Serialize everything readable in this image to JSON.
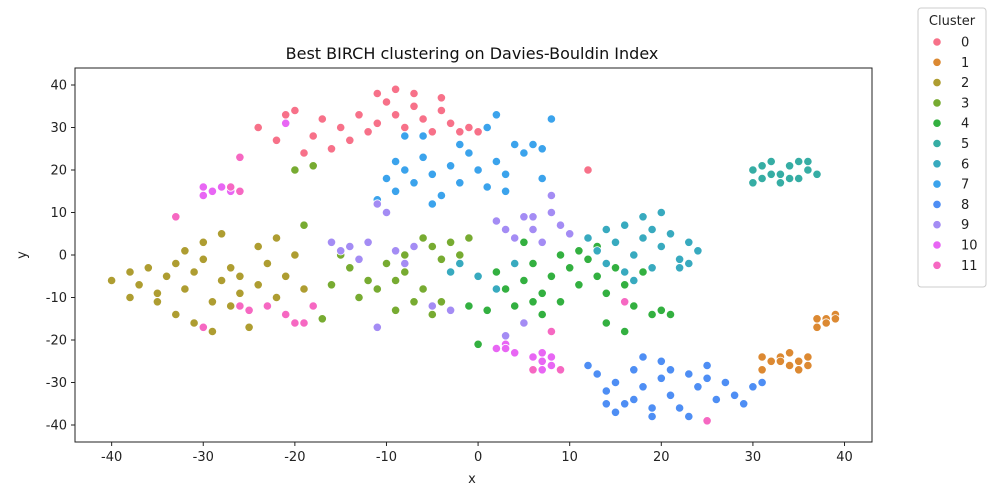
{
  "chart_data": {
    "type": "scatter",
    "title": "Best BIRCH clustering on Davies-Bouldin Index",
    "xlabel": "x",
    "ylabel": "y",
    "xlim": [
      -44,
      43
    ],
    "ylim": [
      -44,
      44
    ],
    "xticks": [
      -40,
      -30,
      -20,
      -10,
      0,
      10,
      20,
      30,
      40
    ],
    "yticks": [
      -40,
      -30,
      -20,
      -10,
      0,
      10,
      20,
      30,
      40
    ],
    "grid": false,
    "legend": {
      "title": "Cluster",
      "placement": "outside-top-right"
    },
    "series": [
      {
        "name": "0",
        "color": "#f77189",
        "points": [
          [
            -20,
            34
          ],
          [
            -17,
            32
          ],
          [
            -15,
            30
          ],
          [
            -13,
            33
          ],
          [
            -12,
            29
          ],
          [
            -11,
            31
          ],
          [
            -10,
            36
          ],
          [
            -9,
            33
          ],
          [
            -8,
            30
          ],
          [
            -7,
            35
          ],
          [
            -6,
            32
          ],
          [
            -5,
            29
          ],
          [
            -4,
            34
          ],
          [
            -14,
            27
          ],
          [
            -16,
            25
          ],
          [
            -18,
            28
          ],
          [
            -11,
            38
          ],
          [
            -9,
            39
          ],
          [
            -7,
            38
          ],
          [
            -3,
            31
          ],
          [
            -2,
            29
          ],
          [
            -1,
            30
          ],
          [
            0,
            29
          ],
          [
            -19,
            24
          ],
          [
            -21,
            33
          ],
          [
            -22,
            27
          ],
          [
            -24,
            30
          ],
          [
            -26,
            23
          ],
          [
            12,
            20
          ],
          [
            -4,
            37
          ]
        ]
      },
      {
        "name": "1",
        "color": "#dc8932",
        "points": [
          [
            31,
            -24
          ],
          [
            32,
            -25
          ],
          [
            33,
            -24
          ],
          [
            34,
            -23
          ],
          [
            35,
            -25
          ],
          [
            36,
            -26
          ],
          [
            34,
            -26
          ],
          [
            33,
            -25
          ],
          [
            36,
            -24
          ],
          [
            31,
            -27
          ],
          [
            37,
            -17
          ],
          [
            38,
            -15
          ],
          [
            39,
            -14
          ],
          [
            38,
            -16
          ],
          [
            37,
            -15
          ],
          [
            39,
            -15
          ],
          [
            35,
            -27
          ]
        ]
      },
      {
        "name": "2",
        "color": "#ae9d31",
        "points": [
          [
            -40,
            -6
          ],
          [
            -38,
            -4
          ],
          [
            -37,
            -7
          ],
          [
            -36,
            -3
          ],
          [
            -35,
            -9
          ],
          [
            -34,
            -5
          ],
          [
            -33,
            -2
          ],
          [
            -32,
            -8
          ],
          [
            -31,
            -4
          ],
          [
            -30,
            -1
          ],
          [
            -29,
            -11
          ],
          [
            -28,
            -6
          ],
          [
            -27,
            -3
          ],
          [
            -26,
            -9
          ],
          [
            -25,
            -13
          ],
          [
            -24,
            -7
          ],
          [
            -23,
            -2
          ],
          [
            -22,
            -10
          ],
          [
            -21,
            -5
          ],
          [
            -20,
            0
          ],
          [
            -19,
            -8
          ],
          [
            -22,
            4
          ],
          [
            -24,
            2
          ],
          [
            -30,
            3
          ],
          [
            -28,
            5
          ],
          [
            -33,
            -14
          ],
          [
            -29,
            -18
          ],
          [
            -25,
            -17
          ],
          [
            -31,
            -16
          ],
          [
            -35,
            -11
          ],
          [
            -38,
            -10
          ],
          [
            -26,
            -5
          ],
          [
            -32,
            1
          ],
          [
            -27,
            -12
          ]
        ]
      },
      {
        "name": "3",
        "color": "#77ab31",
        "points": [
          [
            -20,
            20
          ],
          [
            -18,
            21
          ],
          [
            -17,
            -15
          ],
          [
            -16,
            -7
          ],
          [
            -14,
            -3
          ],
          [
            -13,
            -10
          ],
          [
            -12,
            -6
          ],
          [
            -11,
            -8
          ],
          [
            -9,
            -13
          ],
          [
            -8,
            -4
          ],
          [
            -7,
            -11
          ],
          [
            -6,
            -8
          ],
          [
            -5,
            -14
          ],
          [
            -5,
            2
          ],
          [
            -4,
            -1
          ],
          [
            -3,
            3
          ],
          [
            -2,
            0
          ],
          [
            -1,
            4
          ],
          [
            -8,
            0
          ],
          [
            -10,
            -2
          ],
          [
            -6,
            4
          ],
          [
            -4,
            -11
          ],
          [
            -9,
            -6
          ],
          [
            -19,
            7
          ],
          [
            -15,
            0
          ]
        ]
      },
      {
        "name": "4",
        "color": "#33b040",
        "points": [
          [
            2,
            -4
          ],
          [
            3,
            -8
          ],
          [
            4,
            -12
          ],
          [
            5,
            -6
          ],
          [
            6,
            -2
          ],
          [
            7,
            -9
          ],
          [
            8,
            -5
          ],
          [
            9,
            -11
          ],
          [
            10,
            -3
          ],
          [
            11,
            -7
          ],
          [
            12,
            -1
          ],
          [
            13,
            -5
          ],
          [
            14,
            -9
          ],
          [
            15,
            -3
          ],
          [
            16,
            -7
          ],
          [
            17,
            -12
          ],
          [
            18,
            -4
          ],
          [
            19,
            -14
          ],
          [
            20,
            -13
          ],
          [
            21,
            -14
          ],
          [
            11,
            1
          ],
          [
            13,
            2
          ],
          [
            9,
            0
          ],
          [
            7,
            -14
          ],
          [
            6,
            -11
          ],
          [
            16,
            -18
          ],
          [
            14,
            -16
          ],
          [
            1,
            -13
          ],
          [
            -1,
            -12
          ],
          [
            0,
            -21
          ],
          [
            8,
            -18
          ],
          [
            5,
            3
          ]
        ]
      },
      {
        "name": "5",
        "color": "#36ada4",
        "points": [
          [
            30,
            20
          ],
          [
            31,
            18
          ],
          [
            32,
            22
          ],
          [
            33,
            19
          ],
          [
            34,
            21
          ],
          [
            35,
            18
          ],
          [
            36,
            20
          ],
          [
            37,
            19
          ],
          [
            33,
            17
          ],
          [
            35,
            22
          ],
          [
            32,
            19
          ],
          [
            34,
            18
          ],
          [
            36,
            22
          ],
          [
            31,
            21
          ],
          [
            30,
            17
          ]
        ]
      },
      {
        "name": "6",
        "color": "#38aabf",
        "points": [
          [
            12,
            4
          ],
          [
            13,
            1
          ],
          [
            14,
            -2
          ],
          [
            15,
            3
          ],
          [
            16,
            7
          ],
          [
            17,
            0
          ],
          [
            18,
            4
          ],
          [
            19,
            -3
          ],
          [
            20,
            2
          ],
          [
            21,
            5
          ],
          [
            22,
            -1
          ],
          [
            23,
            3
          ],
          [
            24,
            1
          ],
          [
            18,
            9
          ],
          [
            20,
            10
          ],
          [
            16,
            -4
          ],
          [
            19,
            6
          ],
          [
            22,
            -3
          ],
          [
            14,
            6
          ],
          [
            17,
            -6
          ],
          [
            23,
            -2
          ],
          [
            -3,
            -4
          ],
          [
            -2,
            -2
          ],
          [
            0,
            -5
          ],
          [
            2,
            -8
          ],
          [
            4,
            -2
          ]
        ]
      },
      {
        "name": "7",
        "color": "#3ba3ec",
        "points": [
          [
            -10,
            18
          ],
          [
            -9,
            15
          ],
          [
            -8,
            20
          ],
          [
            -7,
            17
          ],
          [
            -6,
            23
          ],
          [
            -5,
            19
          ],
          [
            -4,
            14
          ],
          [
            -3,
            21
          ],
          [
            -2,
            17
          ],
          [
            -1,
            24
          ],
          [
            0,
            20
          ],
          [
            1,
            16
          ],
          [
            2,
            22
          ],
          [
            3,
            19
          ],
          [
            4,
            26
          ],
          [
            5,
            24
          ],
          [
            6,
            26
          ],
          [
            7,
            25
          ],
          [
            8,
            32
          ],
          [
            -8,
            28
          ],
          [
            -6,
            28
          ],
          [
            -11,
            13
          ],
          [
            -2,
            26
          ],
          [
            1,
            30
          ],
          [
            2,
            33
          ],
          [
            -9,
            22
          ],
          [
            -5,
            12
          ],
          [
            3,
            15
          ],
          [
            7,
            18
          ]
        ]
      },
      {
        "name": "8",
        "color": "#4e8ef4",
        "points": [
          [
            12,
            -26
          ],
          [
            13,
            -28
          ],
          [
            14,
            -32
          ],
          [
            15,
            -30
          ],
          [
            16,
            -35
          ],
          [
            17,
            -27
          ],
          [
            18,
            -31
          ],
          [
            19,
            -38
          ],
          [
            20,
            -29
          ],
          [
            21,
            -33
          ],
          [
            22,
            -36
          ],
          [
            23,
            -28
          ],
          [
            24,
            -31
          ],
          [
            25,
            -26
          ],
          [
            26,
            -34
          ],
          [
            27,
            -30
          ],
          [
            28,
            -33
          ],
          [
            29,
            -35
          ],
          [
            30,
            -31
          ],
          [
            31,
            -30
          ],
          [
            18,
            -24
          ],
          [
            20,
            -25
          ],
          [
            15,
            -37
          ],
          [
            23,
            -38
          ],
          [
            21,
            -27
          ],
          [
            17,
            -34
          ],
          [
            25,
            -29
          ],
          [
            14,
            -35
          ],
          [
            19,
            -36
          ]
        ]
      },
      {
        "name": "9",
        "color": "#a48cf4",
        "points": [
          [
            -16,
            3
          ],
          [
            -15,
            1
          ],
          [
            -14,
            2
          ],
          [
            -13,
            -1
          ],
          [
            -12,
            3
          ],
          [
            -11,
            12
          ],
          [
            -10,
            10
          ],
          [
            -9,
            1
          ],
          [
            -8,
            -2
          ],
          [
            -7,
            2
          ],
          [
            2,
            8
          ],
          [
            3,
            6
          ],
          [
            4,
            4
          ],
          [
            5,
            9
          ],
          [
            6,
            6
          ],
          [
            7,
            3
          ],
          [
            8,
            10
          ],
          [
            9,
            7
          ],
          [
            10,
            5
          ],
          [
            6,
            9
          ],
          [
            8,
            14
          ],
          [
            -11,
            -17
          ],
          [
            5,
            -16
          ],
          [
            3,
            -19
          ],
          [
            -3,
            -13
          ],
          [
            -5,
            -12
          ]
        ]
      },
      {
        "name": "10",
        "color": "#e866f4",
        "points": [
          [
            -30,
            16
          ],
          [
            -29,
            15
          ],
          [
            -28,
            16
          ],
          [
            -27,
            15
          ],
          [
            -30,
            14
          ],
          [
            2,
            -22
          ],
          [
            3,
            -21
          ],
          [
            4,
            -23
          ],
          [
            3,
            -22
          ],
          [
            6,
            -24
          ],
          [
            7,
            -23
          ],
          [
            8,
            -24
          ],
          [
            7,
            -27
          ],
          [
            8,
            -26
          ],
          [
            7,
            -25
          ],
          [
            -21,
            31
          ]
        ]
      },
      {
        "name": "11",
        "color": "#f668c2",
        "points": [
          [
            -27,
            16
          ],
          [
            -26,
            15
          ],
          [
            -33,
            9
          ],
          [
            -30,
            -17
          ],
          [
            -26,
            -12
          ],
          [
            -25,
            -13
          ],
          [
            -21,
            -14
          ],
          [
            -20,
            -16
          ],
          [
            -19,
            -16
          ],
          [
            -23,
            -12
          ],
          [
            -26,
            23
          ],
          [
            -18,
            -12
          ],
          [
            16,
            -11
          ],
          [
            25,
            -39
          ],
          [
            8,
            -18
          ],
          [
            6,
            -27
          ],
          [
            9,
            -27
          ]
        ]
      }
    ]
  }
}
